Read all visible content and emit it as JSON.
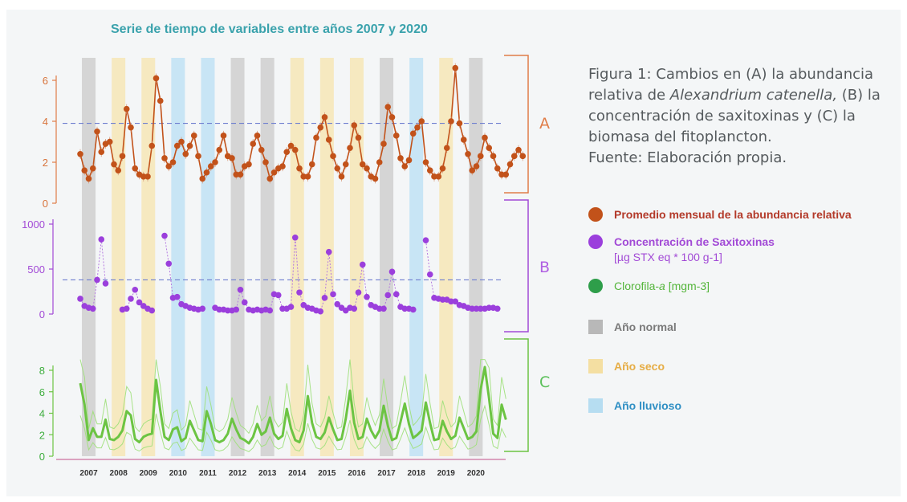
{
  "chart_data": {
    "type": "line",
    "title": "Serie de tiempo de variables entre años 2007 y 2020",
    "years": [
      "2007",
      "2008",
      "2009",
      "2010",
      "2011",
      "2012",
      "2013",
      "2014",
      "2015",
      "2016",
      "2017",
      "2018",
      "2019",
      "2020"
    ],
    "year_classes": [
      "normal",
      "seco",
      "seco",
      "lluvioso",
      "lluvioso",
      "normal",
      "normal",
      "seco",
      "seco",
      "seco",
      "normal",
      "lluvioso",
      "seco",
      "normal"
    ],
    "panels": [
      {
        "letter": "A",
        "series_name": "Promedio mensual de la abundancia relativa",
        "color": "#c2521a",
        "marker": "circle",
        "yticks": [
          0,
          2,
          4,
          6
        ],
        "ylim": [
          0,
          6.6
        ],
        "threshold": 3.9,
        "values": [
          2.4,
          1.6,
          1.2,
          1.7,
          3.5,
          2.5,
          2.9,
          3.0,
          1.9,
          1.6,
          2.3,
          4.6,
          3.7,
          1.7,
          1.4,
          1.3,
          1.3,
          2.8,
          6.1,
          5.0,
          2.2,
          1.8,
          2.0,
          2.8,
          3.0,
          2.4,
          2.8,
          3.3,
          2.3,
          1.2,
          1.5,
          1.8,
          2.0,
          2.6,
          3.3,
          2.3,
          2.2,
          1.4,
          1.4,
          1.8,
          1.9,
          2.9,
          3.3,
          2.6,
          2.0,
          1.2,
          1.5,
          1.7,
          1.8,
          2.5,
          2.8,
          2.6,
          1.7,
          1.3,
          1.3,
          1.9,
          3.2,
          3.7,
          4.2,
          3.1,
          2.3,
          1.7,
          1.3,
          1.9,
          2.7,
          3.8,
          3.2,
          1.9,
          1.7,
          1.3,
          1.2,
          2.0,
          2.9,
          4.7,
          4.2,
          3.3,
          2.2,
          1.8,
          2.1,
          3.4,
          3.7,
          4.0,
          2.0,
          1.6,
          1.3,
          1.3,
          1.7,
          2.7,
          4.0,
          6.6,
          3.9,
          3.1,
          2.4,
          1.6,
          1.8,
          2.3,
          3.2,
          2.7,
          2.3,
          1.7,
          1.4,
          1.4,
          1.9,
          2.3,
          2.6,
          2.3
        ]
      },
      {
        "letter": "B",
        "series_name": "Concentración de Saxitoxinas",
        "unit": "[µg STX eq * 100 g-1]",
        "color": "#9b3fdc",
        "marker": "circle",
        "yticks": [
          0,
          500,
          1000
        ],
        "ylim": [
          0,
          1000
        ],
        "threshold": 380,
        "values": [
          170,
          90,
          70,
          60,
          380,
          830,
          340,
          null,
          null,
          null,
          50,
          60,
          170,
          270,
          130,
          90,
          60,
          40,
          null,
          null,
          870,
          560,
          180,
          190,
          110,
          90,
          70,
          60,
          50,
          60,
          null,
          null,
          70,
          50,
          50,
          40,
          40,
          50,
          270,
          130,
          50,
          40,
          50,
          40,
          50,
          40,
          220,
          210,
          60,
          60,
          80,
          850,
          240,
          100,
          70,
          60,
          40,
          30,
          180,
          690,
          220,
          110,
          70,
          40,
          70,
          60,
          240,
          550,
          190,
          100,
          80,
          60,
          60,
          210,
          470,
          220,
          80,
          60,
          60,
          50,
          null,
          null,
          820,
          440,
          180,
          170,
          160,
          160,
          140,
          140,
          100,
          90,
          70,
          60,
          60,
          60,
          60,
          70,
          70,
          60
        ]
      },
      {
        "letter": "C",
        "series_name": "Clorofila-a",
        "unit": "[mgm-3]",
        "color": "#6cc443",
        "yticks": [
          0,
          2,
          4,
          6,
          8
        ],
        "ylim": [
          0,
          9
        ],
        "values": [
          6.8,
          4.8,
          1.5,
          2.6,
          1.8,
          1.8,
          3.4,
          1.6,
          1.5,
          1.8,
          2.4,
          4.2,
          3.8,
          1.6,
          1.3,
          1.8,
          2.0,
          2.1,
          7.1,
          4.2,
          1.8,
          1.5,
          2.5,
          2.7,
          1.4,
          1.7,
          3.3,
          2.4,
          1.5,
          1.4,
          4.2,
          3.0,
          1.5,
          1.3,
          1.5,
          2.1,
          3.5,
          2.5,
          1.7,
          1.5,
          1.2,
          1.8,
          3.0,
          2.0,
          2.3,
          3.6,
          2.1,
          1.6,
          1.9,
          4.4,
          2.6,
          1.5,
          1.3,
          2.4,
          5.6,
          3.1,
          1.8,
          1.6,
          2.2,
          3.6,
          2.5,
          1.5,
          1.6,
          3.5,
          6.1,
          3.1,
          1.6,
          1.8,
          3.5,
          2.4,
          1.7,
          2.4,
          4.7,
          2.8,
          1.5,
          1.7,
          3.2,
          4.9,
          3.0,
          1.7,
          2.0,
          2.4,
          5.0,
          3.1,
          1.5,
          1.6,
          3.3,
          2.3,
          1.6,
          1.9,
          3.6,
          2.6,
          1.6,
          1.8,
          2.3,
          6.2,
          8.3,
          5.4,
          2.1,
          1.7,
          4.8,
          3.4
        ]
      }
    ]
  },
  "caption": {
    "line1": "Figura 1: Cambios en (A) la abundancia",
    "line2_pre": "relativa de ",
    "line2_italic": "Alexandrium catenella,",
    "line2_post": " (B) la",
    "line3": "concentración de saxitoxinas y (C) la",
    "line4": "biomasa del fitoplancton.",
    "line5": "Fuente: Elaboración propia."
  },
  "legend": {
    "abundance": {
      "label": "Promedio mensual de la abundancia relativa",
      "color": "#b33a2a",
      "dot": "#c2521a"
    },
    "saxitoxin": {
      "label": "Concentración de Saxitoxinas",
      "unit": "[µg STX eq * 100 g-1]",
      "color": "#a24ad6",
      "dot": "#9b3fdc"
    },
    "chlorophyll": {
      "label": "Clorofila-",
      "label_italic": "a",
      "unit": "[mgm-3]",
      "color": "#54b53b",
      "dot": "#2e9e4a"
    },
    "normal": {
      "label": "Año normal",
      "color": "#7a7a7a",
      "swatch": "#b8b8b8"
    },
    "seco": {
      "label": "Año seco",
      "color": "#e6ad45",
      "swatch": "#f4dfa2"
    },
    "lluvioso": {
      "label": "Año lluvioso",
      "color": "#2f8fc4",
      "swatch": "#b6ddf1"
    }
  },
  "band_colors": {
    "normal": "#cfcfcf",
    "seco": "#f6e6b6",
    "lluvioso": "#bfe2f4"
  },
  "panel_label_colors": {
    "A": "#e07d48",
    "B": "#b060e2",
    "C": "#5bc05a"
  }
}
